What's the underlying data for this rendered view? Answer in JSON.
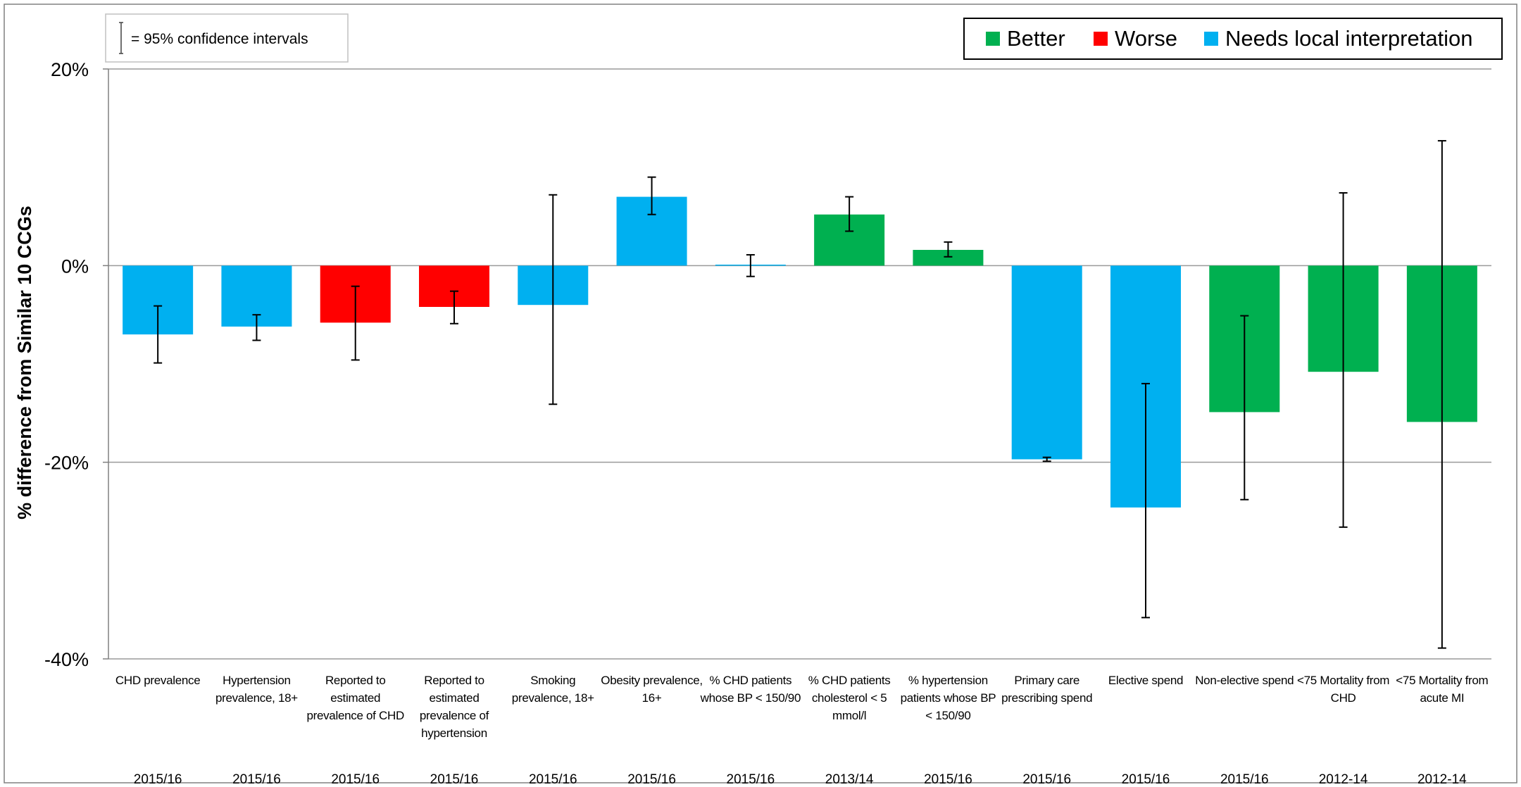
{
  "chart_data": {
    "type": "bar",
    "ylabel": "% difference from Similar 10 CCGs",
    "ylim": [
      -40,
      20
    ],
    "y_ticks": [
      20,
      0,
      -20,
      -40
    ],
    "y_tick_labels": [
      "20%",
      "0%",
      "-20%",
      "-40%"
    ],
    "gridlines": true,
    "ci_note": "= 95% confidence intervals",
    "legend_position": "top-right",
    "legend": [
      {
        "label": "Better",
        "color": "#00b050"
      },
      {
        "label": "Worse",
        "color": "#ff0000"
      },
      {
        "label": "Needs local interpretation",
        "color": "#00b0f0"
      }
    ],
    "colors": {
      "better": "#00b050",
      "worse": "#ff0000",
      "needs": "#00b0f0"
    },
    "categories": [
      "CHD prevalence",
      "Hypertension prevalence, 18+",
      "Reported to estimated prevalence of CHD",
      "Reported to estimated prevalence of hypertension",
      "Smoking prevalence, 18+",
      "Obesity prevalence, 16+",
      "% CHD patients whose BP < 150/90",
      "% CHD patients cholesterol < 5 mmol/l",
      "% hypertension patients whose BP < 150/90",
      "Primary care prescribing spend",
      "Elective spend",
      "Non-elective spend",
      "<75 Mortality from CHD",
      "<75 Mortality from acute MI"
    ],
    "category_lines": [
      [
        "CHD prevalence"
      ],
      [
        "Hypertension",
        "prevalence, 18+"
      ],
      [
        "Reported to",
        "estimated",
        "prevalence of CHD"
      ],
      [
        "Reported to",
        "estimated",
        "prevalence of",
        "hypertension"
      ],
      [
        "Smoking",
        "prevalence, 18+"
      ],
      [
        "Obesity prevalence,",
        "16+"
      ],
      [
        "% CHD patients",
        "whose BP < 150/90"
      ],
      [
        "% CHD patients",
        "cholesterol < 5",
        "mmol/l"
      ],
      [
        "% hypertension",
        "patients whose BP",
        "< 150/90"
      ],
      [
        "Primary care",
        "prescribing spend"
      ],
      [
        "Elective spend"
      ],
      [
        "Non-elective spend"
      ],
      [
        "<75 Mortality from",
        "CHD"
      ],
      [
        "<75 Mortality from",
        "acute MI"
      ]
    ],
    "periods": [
      "2015/16",
      "2015/16",
      "2015/16",
      "2015/16",
      "2015/16",
      "2015/16",
      "2015/16",
      "2013/14",
      "2015/16",
      "2015/16",
      "2015/16",
      "2015/16",
      "2012-14",
      "2012-14"
    ],
    "values": [
      -7.0,
      -6.2,
      -5.8,
      -4.2,
      -4.0,
      7.0,
      0.1,
      5.2,
      1.6,
      -19.7,
      -24.6,
      -14.9,
      -10.8,
      -15.9
    ],
    "ci_low": [
      -9.9,
      -7.6,
      -9.6,
      -5.9,
      -14.1,
      5.2,
      -1.1,
      3.5,
      0.9,
      -19.9,
      -35.8,
      -23.8,
      -26.6,
      -38.9
    ],
    "ci_high": [
      -4.1,
      -5.0,
      -2.1,
      -2.6,
      7.2,
      9.0,
      1.1,
      7.0,
      2.4,
      -19.5,
      -12.0,
      -5.1,
      7.4,
      12.7
    ],
    "status": [
      "needs",
      "needs",
      "worse",
      "worse",
      "needs",
      "needs",
      "needs",
      "better",
      "better",
      "needs",
      "needs",
      "better",
      "better",
      "better"
    ]
  }
}
